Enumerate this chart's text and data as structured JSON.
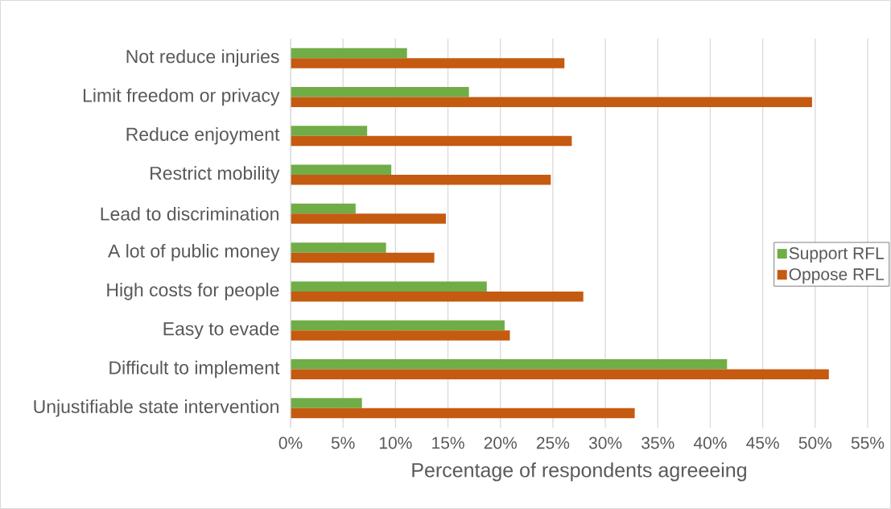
{
  "chart_data": {
    "type": "bar",
    "orientation": "horizontal",
    "xlabel": "Percentage of respondents agreeeing",
    "categories": [
      "Not reduce injuries",
      "Limit freedom or privacy",
      "Reduce enjoyment",
      "Restrict mobility",
      "Lead to discrimination",
      "A lot of public money",
      "High costs for people",
      "Easy to evade",
      "Difficult to implement",
      "Unjustifiable state intervention"
    ],
    "series": [
      {
        "name": "Support RFL",
        "color": "#70ad47",
        "values": [
          11.1,
          17.0,
          7.3,
          9.6,
          6.2,
          9.1,
          18.7,
          20.4,
          41.6,
          6.8
        ]
      },
      {
        "name": "Oppose RFL",
        "color": "#c55a11",
        "values": [
          26.1,
          49.7,
          26.8,
          24.8,
          14.8,
          13.7,
          27.9,
          20.9,
          51.3,
          32.8
        ]
      }
    ],
    "xlim": [
      0,
      55
    ],
    "xticks": [
      {
        "value": 0,
        "label": "0%"
      },
      {
        "value": 5,
        "label": "5%"
      },
      {
        "value": 10,
        "label": "10%"
      },
      {
        "value": 15,
        "label": "15%"
      },
      {
        "value": 20,
        "label": "20%"
      },
      {
        "value": 25,
        "label": "25%"
      },
      {
        "value": 30,
        "label": "30%"
      },
      {
        "value": 35,
        "label": "35%"
      },
      {
        "value": 40,
        "label": "40%"
      },
      {
        "value": 45,
        "label": "45%"
      },
      {
        "value": 50,
        "label": "50%"
      },
      {
        "value": 55,
        "label": "55%"
      }
    ],
    "grid": "x",
    "legend": "right"
  }
}
